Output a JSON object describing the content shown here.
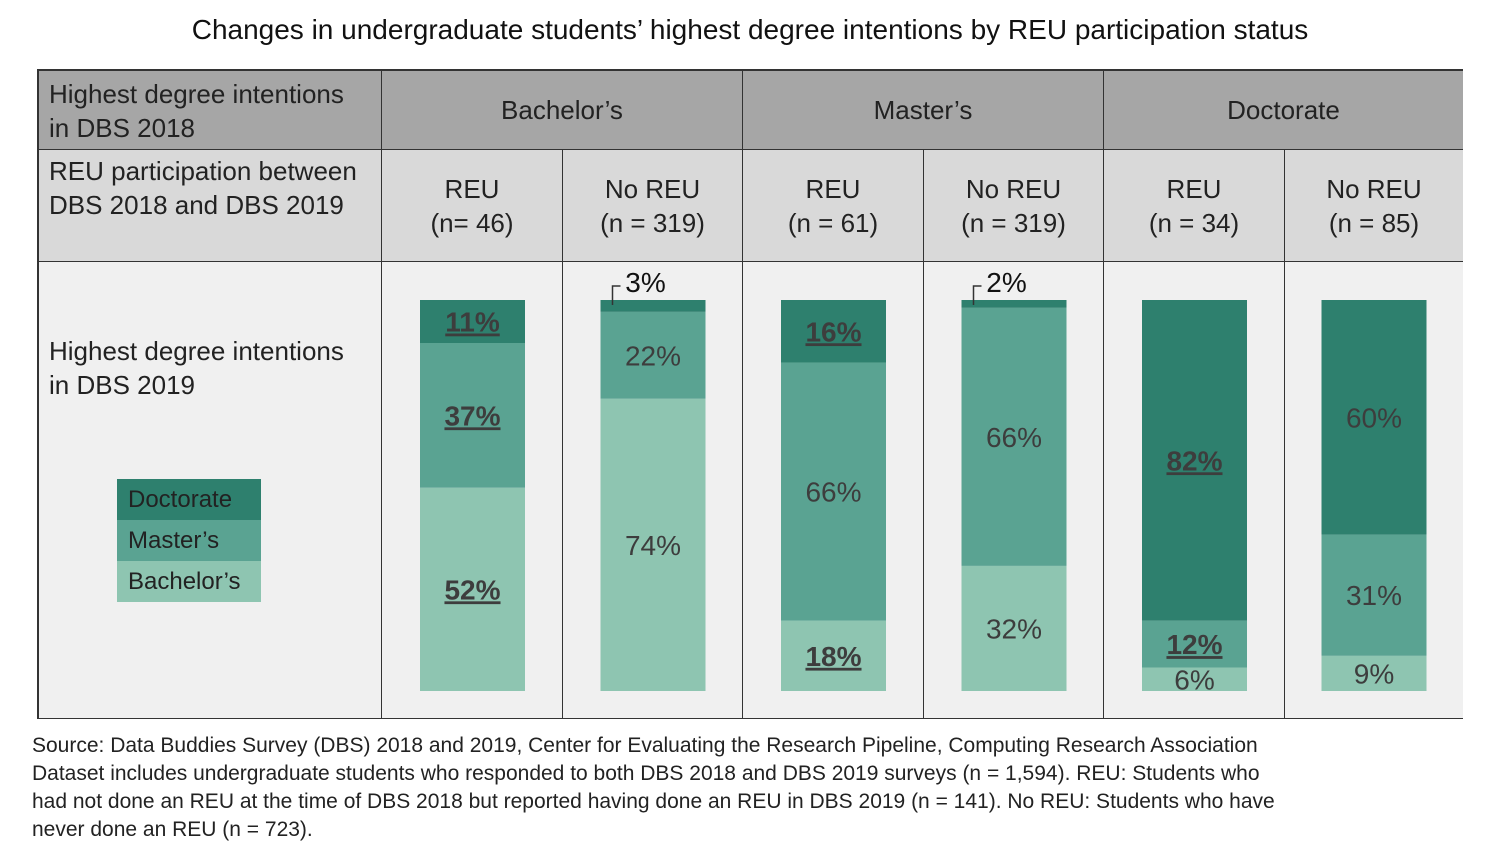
{
  "chart_data": {
    "type": "bar",
    "stacked": true,
    "title": "Changes in undergraduate students’ highest degree intentions by REU participation status",
    "header": {
      "row1_label": "Highest degree intentions in DBS 2018",
      "row2_label": "REU participation between DBS 2018 and DBS 2019",
      "row3_label": "Highest degree intentions in DBS 2019",
      "groups": [
        "Bachelor’s",
        "Master’s",
        "Doctorate"
      ]
    },
    "categories": [
      {
        "group": "Bachelor’s",
        "label": "REU",
        "n": "(n= 46)"
      },
      {
        "group": "Bachelor’s",
        "label": "No REU",
        "n": "(n = 319)"
      },
      {
        "group": "Master’s",
        "label": "REU",
        "n": "(n = 61)"
      },
      {
        "group": "Master’s",
        "label": "No REU",
        "n": "(n = 319)"
      },
      {
        "group": "Doctorate",
        "label": "REU",
        "n": "(n = 34)"
      },
      {
        "group": "Doctorate",
        "label": "No REU",
        "n": "(n = 85)"
      }
    ],
    "series": [
      {
        "name": "Bachelor’s",
        "color": "#8ec5b1",
        "values": [
          52,
          74,
          18,
          32,
          6,
          9
        ],
        "bold": [
          true,
          false,
          true,
          false,
          false,
          false
        ]
      },
      {
        "name": "Master’s",
        "color": "#5aa392",
        "values": [
          37,
          22,
          66,
          66,
          12,
          31
        ],
        "bold": [
          true,
          false,
          false,
          false,
          true,
          false
        ]
      },
      {
        "name": "Doctorate",
        "color": "#2e806e",
        "values": [
          11,
          3,
          16,
          2,
          82,
          60
        ],
        "bold": [
          true,
          false,
          true,
          false,
          true,
          false
        ]
      }
    ],
    "legend_order": [
      "Doctorate",
      "Master’s",
      "Bachelor’s"
    ],
    "ylim": [
      0,
      100
    ]
  },
  "source": [
    "Source: Data Buddies Survey (DBS) 2018 and 2019, Center for Evaluating the Research Pipeline, Computing Research Association",
    "Dataset includes undergraduate students who responded to both DBS 2018 and DBS 2019 surveys (n = 1,594). REU: Students who",
    "had not done an REU at the time of DBS 2018 but reported having done an REU in DBS 2019 (n = 141). No REU: Students who have",
    "never done an REU (n = 723)."
  ]
}
